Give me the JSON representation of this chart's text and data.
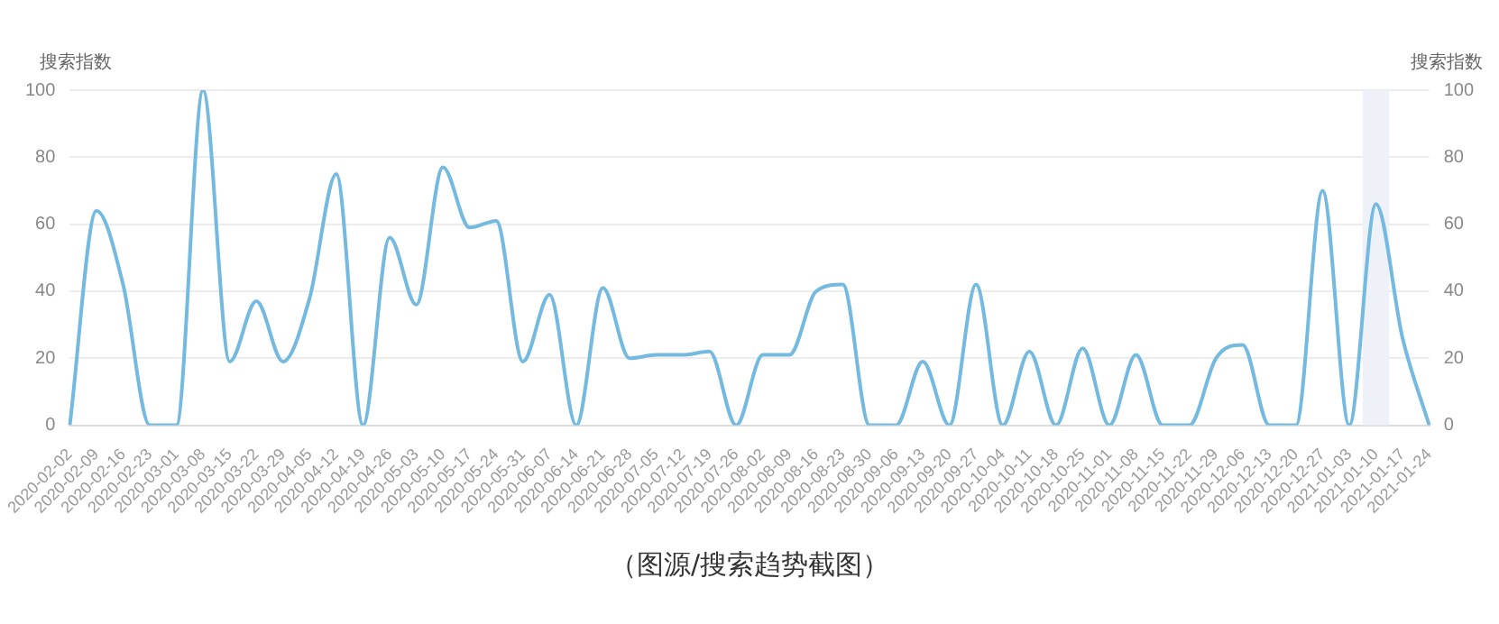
{
  "chart_data": {
    "type": "line",
    "ylabel": "搜索指数",
    "y2label": "搜索指数",
    "categories": [
      "2020-02-02",
      "2020-02-09",
      "2020-02-16",
      "2020-02-23",
      "2020-03-01",
      "2020-03-08",
      "2020-03-15",
      "2020-03-22",
      "2020-03-29",
      "2020-04-05",
      "2020-04-12",
      "2020-04-19",
      "2020-04-26",
      "2020-05-03",
      "2020-05-10",
      "2020-05-17",
      "2020-05-24",
      "2020-05-31",
      "2020-06-07",
      "2020-06-14",
      "2020-06-21",
      "2020-06-28",
      "2020-07-05",
      "2020-07-12",
      "2020-07-19",
      "2020-07-26",
      "2020-08-02",
      "2020-08-09",
      "2020-08-16",
      "2020-08-23",
      "2020-08-30",
      "2020-09-06",
      "2020-09-13",
      "2020-09-20",
      "2020-09-27",
      "2020-10-04",
      "2020-10-11",
      "2020-10-18",
      "2020-10-25",
      "2020-11-01",
      "2020-11-08",
      "2020-11-15",
      "2020-11-22",
      "2020-11-29",
      "2020-12-06",
      "2020-12-13",
      "2020-12-20",
      "2020-12-27",
      "2021-01-03",
      "2021-01-10",
      "2021-01-17",
      "2021-01-24"
    ],
    "series": [
      {
        "color": "#74b9e0",
        "values": [
          0,
          64,
          42,
          0,
          0,
          100,
          19,
          37,
          19,
          38,
          75,
          0,
          56,
          36,
          77,
          59,
          61,
          19,
          39,
          0,
          41,
          20,
          21,
          21,
          22,
          0,
          21,
          21,
          40,
          42,
          0,
          0,
          19,
          0,
          42,
          0,
          22,
          0,
          23,
          0,
          21,
          0,
          0,
          20,
          24,
          0,
          0,
          70,
          0,
          66,
          26,
          0
        ]
      }
    ],
    "ylim": [
      0,
      100
    ],
    "yticks": [
      0,
      20,
      40,
      60,
      80,
      100
    ],
    "y2lim": [
      0,
      100
    ],
    "y2ticks": [
      0,
      20,
      40,
      60,
      80,
      100
    ],
    "grid": "y",
    "legend": false,
    "marker": "none",
    "line_style": "solid",
    "bands": [
      {
        "axis": "x",
        "from": "2021-01-10",
        "to": "2021-01-10",
        "color": "#eef1f7"
      }
    ],
    "annotations": [
      "（图源/搜索趋势截图）"
    ]
  }
}
